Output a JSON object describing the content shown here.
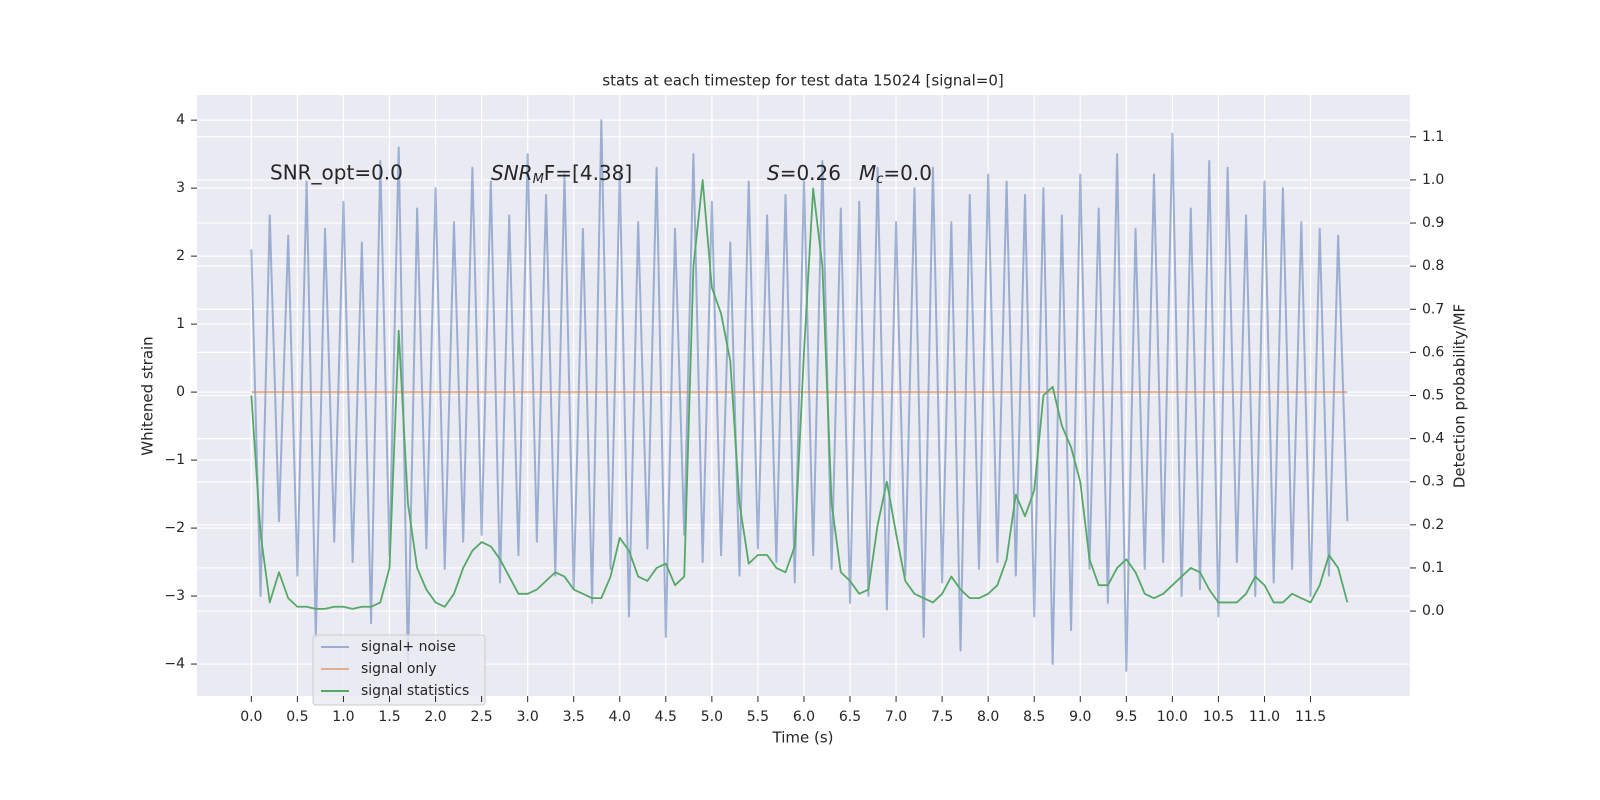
{
  "chart_data": {
    "type": "line",
    "title": "stats at each timestep for test data 15024 [signal=0]",
    "x_label": "Time (s)",
    "y_label": "Whitened strain",
    "y2_label": "Detection probability/MF",
    "annotations": [
      {
        "text": "SNR_opt=0.0"
      },
      {
        "italic": "SNR",
        "sub": "M",
        "text": "F=[4.38]"
      },
      {
        "italic": "S",
        "text": "=0.26"
      },
      {
        "italic": "M",
        "sub": "c",
        "text": "=0.0"
      }
    ],
    "grid": true,
    "legend": "lower left",
    "xlim": [
      -0.59,
      12.58
    ],
    "ylim": [
      -4.47,
      4.37
    ],
    "y2lim": [
      -0.197,
      1.197
    ],
    "xticks": [
      {
        "value": 0,
        "label": "0.0"
      },
      {
        "value": 0.5,
        "label": "0.5"
      },
      {
        "value": 1,
        "label": "1.0"
      },
      {
        "value": 1.5,
        "label": "1.5"
      },
      {
        "value": 2,
        "label": "2.0"
      },
      {
        "value": 2.5,
        "label": "2.5"
      },
      {
        "value": 3,
        "label": "3.0"
      },
      {
        "value": 3.5,
        "label": "3.5"
      },
      {
        "value": 4,
        "label": "4.0"
      },
      {
        "value": 4.5,
        "label": "4.5"
      },
      {
        "value": 5,
        "label": "5.0"
      },
      {
        "value": 5.5,
        "label": "5.5"
      },
      {
        "value": 6,
        "label": "6.0"
      },
      {
        "value": 6.5,
        "label": "6.5"
      },
      {
        "value": 7,
        "label": "7.0"
      },
      {
        "value": 7.5,
        "label": "7.5"
      },
      {
        "value": 8,
        "label": "8.0"
      },
      {
        "value": 8.5,
        "label": "8.5"
      },
      {
        "value": 9,
        "label": "9.0"
      },
      {
        "value": 9.5,
        "label": "9.5"
      },
      {
        "value": 10,
        "label": "10.0"
      },
      {
        "value": 10.5,
        "label": "10.5"
      },
      {
        "value": 11,
        "label": "11.0"
      },
      {
        "value": 11.5,
        "label": "11.5"
      }
    ],
    "yticks": [
      {
        "value": -4,
        "label": "−4"
      },
      {
        "value": -3,
        "label": "−3"
      },
      {
        "value": -2,
        "label": "−2"
      },
      {
        "value": -1,
        "label": "−1"
      },
      0,
      1,
      2,
      3,
      4
    ],
    "y2ticks": [
      {
        "value": 0,
        "label": "0.0"
      },
      {
        "value": 0.1,
        "label": "0.1"
      },
      {
        "value": 0.2,
        "label": "0.2"
      },
      {
        "value": 0.3,
        "label": "0.3"
      },
      {
        "value": 0.4,
        "label": "0.4"
      },
      {
        "value": 0.5,
        "label": "0.5"
      },
      {
        "value": 0.6,
        "label": "0.6"
      },
      {
        "value": 0.7,
        "label": "0.7"
      },
      {
        "value": 0.8,
        "label": "0.8"
      },
      {
        "value": 0.9,
        "label": "0.9"
      },
      {
        "value": 1,
        "label": "1.0"
      },
      {
        "value": 1.1,
        "label": "1.1"
      }
    ],
    "x": [
      0,
      0.1,
      0.2,
      0.3,
      0.4,
      0.5,
      0.6,
      0.7,
      0.8,
      0.9,
      1,
      1.1,
      1.2,
      1.3,
      1.4,
      1.5,
      1.6,
      1.7,
      1.8,
      1.9,
      2,
      2.1,
      2.2,
      2.3,
      2.4,
      2.5,
      2.6,
      2.7,
      2.8,
      2.9,
      3,
      3.1,
      3.2,
      3.3,
      3.4,
      3.5,
      3.6,
      3.7,
      3.8,
      3.9,
      4,
      4.1,
      4.2,
      4.3,
      4.4,
      4.5,
      4.6,
      4.7,
      4.8,
      4.9,
      5,
      5.1,
      5.2,
      5.3,
      5.4,
      5.5,
      5.6,
      5.7,
      5.8,
      5.9,
      6,
      6.1,
      6.2,
      6.3,
      6.4,
      6.5,
      6.6,
      6.7,
      6.8,
      6.9,
      7,
      7.1,
      7.2,
      7.3,
      7.4,
      7.5,
      7.6,
      7.7,
      7.8,
      7.9,
      8,
      8.1,
      8.2,
      8.3,
      8.4,
      8.5,
      8.6,
      8.7,
      8.8,
      8.9,
      9,
      9.1,
      9.2,
      9.3,
      9.4,
      9.5,
      9.6,
      9.7,
      9.8,
      9.9,
      10,
      10.1,
      10.2,
      10.3,
      10.4,
      10.5,
      10.6,
      10.7,
      10.8,
      10.9,
      11,
      11.1,
      11.2,
      11.3,
      11.4,
      11.5,
      11.6,
      11.7,
      11.8,
      11.9
    ],
    "series": [
      {
        "name": "signal+ noise",
        "color": "#4c72b0",
        "opacity": 0.5,
        "values": [
          2.1,
          -3.0,
          2.6,
          -1.9,
          2.3,
          -2.7,
          3.1,
          -3.6,
          2.4,
          -2.2,
          2.8,
          -2.5,
          2.2,
          -3.4,
          3.4,
          -2.4,
          3.6,
          -4.0,
          2.7,
          -2.3,
          3.0,
          -2.6,
          2.5,
          -2.2,
          3.3,
          -2.1,
          3.1,
          -2.8,
          2.6,
          -2.4,
          3.5,
          -2.2,
          2.9,
          -2.7,
          3.2,
          -2.9,
          2.4,
          -3.1,
          4.0,
          -2.6,
          3.2,
          -3.3,
          2.5,
          -2.3,
          3.3,
          -3.6,
          2.4,
          -2.1,
          3.5,
          -2.5,
          2.8,
          -2.4,
          2.2,
          -2.7,
          3.1,
          -2.3,
          2.6,
          -2.5,
          2.9,
          -2.8,
          3.1,
          -2.4,
          3.4,
          -2.6,
          2.7,
          -3.1,
          2.8,
          -3.0,
          3.3,
          -3.2,
          2.5,
          -2.7,
          3.0,
          -3.6,
          3.3,
          -2.8,
          2.5,
          -3.8,
          2.9,
          -2.6,
          3.2,
          -2.5,
          3.1,
          -2.7,
          2.9,
          -3.3,
          3.0,
          -4.0,
          2.6,
          -3.5,
          3.2,
          -2.6,
          2.7,
          -3.1,
          3.5,
          -4.1,
          2.4,
          -2.6,
          3.2,
          -2.5,
          3.8,
          -3.0,
          2.7,
          -2.9,
          3.4,
          -3.3,
          3.3,
          -2.5,
          2.6,
          -3.0,
          3.1,
          -2.8,
          3.0,
          -2.6,
          2.5,
          -3.0,
          2.4,
          -2.7,
          2.3,
          -1.9
        ]
      },
      {
        "name": "signal only",
        "color": "#dd8452",
        "opacity": 0.6,
        "values": [
          0,
          0,
          0,
          0,
          0,
          0,
          0,
          0,
          0,
          0,
          0,
          0,
          0,
          0,
          0,
          0,
          0,
          0,
          0,
          0,
          0,
          0,
          0,
          0,
          0,
          0,
          0,
          0,
          0,
          0,
          0,
          0,
          0,
          0,
          0,
          0,
          0,
          0,
          0,
          0,
          0,
          0,
          0,
          0,
          0,
          0,
          0,
          0,
          0,
          0,
          0,
          0,
          0,
          0,
          0,
          0,
          0,
          0,
          0,
          0,
          0,
          0,
          0,
          0,
          0,
          0,
          0,
          0,
          0,
          0,
          0,
          0,
          0,
          0,
          0,
          0,
          0,
          0,
          0,
          0,
          0,
          0,
          0,
          0,
          0,
          0,
          0,
          0,
          0,
          0,
          0,
          0,
          0,
          0,
          0,
          0,
          0,
          0,
          0,
          0,
          0,
          0,
          0,
          0,
          0,
          0,
          0,
          0,
          0,
          0,
          0,
          0,
          0,
          0,
          0,
          0,
          0,
          0,
          0,
          0
        ]
      },
      {
        "name": "signal statistics",
        "color": "#55a868",
        "opacity": 1,
        "axis": "y2",
        "values": [
          0.5,
          0.18,
          0.02,
          0.09,
          0.03,
          0.01,
          0.01,
          0.005,
          0.005,
          0.01,
          0.01,
          0.005,
          0.01,
          0.01,
          0.02,
          0.1,
          0.65,
          0.25,
          0.1,
          0.05,
          0.02,
          0.01,
          0.04,
          0.1,
          0.14,
          0.16,
          0.15,
          0.12,
          0.08,
          0.04,
          0.04,
          0.05,
          0.07,
          0.09,
          0.08,
          0.05,
          0.04,
          0.03,
          0.03,
          0.08,
          0.17,
          0.14,
          0.08,
          0.07,
          0.1,
          0.11,
          0.06,
          0.08,
          0.8,
          1.0,
          0.75,
          0.69,
          0.58,
          0.25,
          0.11,
          0.13,
          0.13,
          0.1,
          0.09,
          0.15,
          0.6,
          0.98,
          0.8,
          0.25,
          0.09,
          0.07,
          0.04,
          0.05,
          0.2,
          0.3,
          0.18,
          0.07,
          0.04,
          0.03,
          0.02,
          0.04,
          0.08,
          0.05,
          0.03,
          0.03,
          0.04,
          0.06,
          0.12,
          0.27,
          0.22,
          0.28,
          0.5,
          0.52,
          0.43,
          0.38,
          0.3,
          0.12,
          0.06,
          0.06,
          0.1,
          0.12,
          0.09,
          0.04,
          0.03,
          0.04,
          0.06,
          0.08,
          0.1,
          0.09,
          0.05,
          0.02,
          0.02,
          0.02,
          0.04,
          0.08,
          0.06,
          0.02,
          0.02,
          0.04,
          0.03,
          0.02,
          0.06,
          0.13,
          0.1,
          0.02
        ]
      }
    ]
  }
}
